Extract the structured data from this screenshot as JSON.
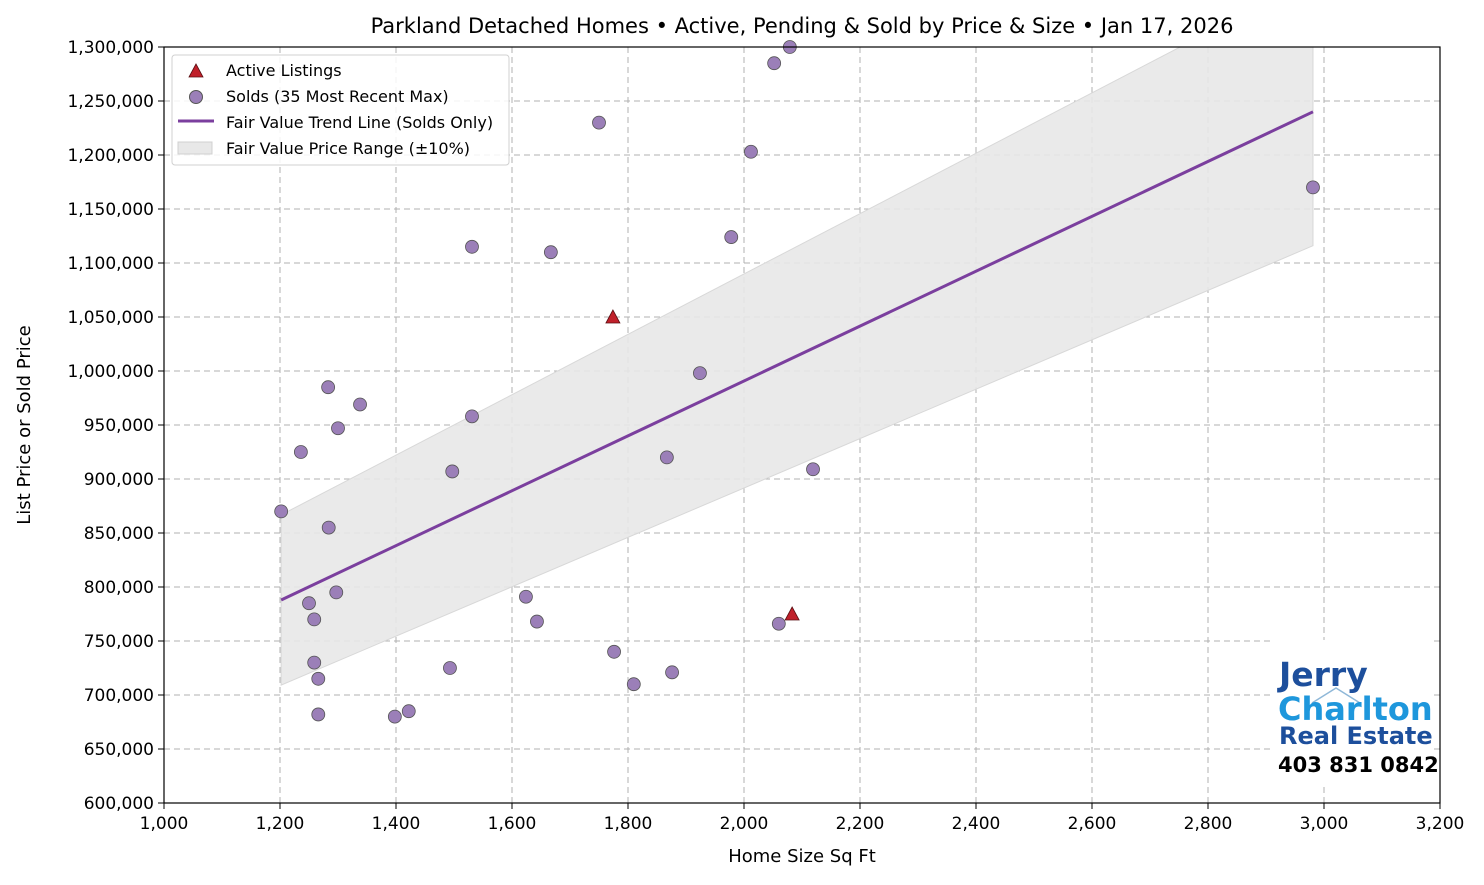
{
  "chart_data": {
    "type": "scatter",
    "title": "Parkland Detached Homes • Active, Pending & Sold by Price & Size • Jan 17, 2026",
    "xlabel": "Home Size Sq Ft",
    "ylabel": "List Price or Sold Price",
    "xlim": [
      1000,
      3200
    ],
    "ylim": [
      600000,
      1300000
    ],
    "grid": true,
    "legend_position": "top-left",
    "x_ticks": [
      1000,
      1200,
      1400,
      1600,
      1800,
      2000,
      2200,
      2400,
      2600,
      2800,
      3000,
      3200
    ],
    "x_tick_labels": [
      "1,000",
      "1,200",
      "1,400",
      "1,600",
      "1,800",
      "2,000",
      "2,200",
      "2,400",
      "2,600",
      "2,800",
      "3,000",
      "3,200"
    ],
    "y_ticks": [
      600000,
      650000,
      700000,
      750000,
      800000,
      850000,
      900000,
      950000,
      1000000,
      1050000,
      1100000,
      1150000,
      1200000,
      1250000,
      1300000
    ],
    "y_tick_labels": [
      "600,000",
      "650,000",
      "700,000",
      "750,000",
      "800,000",
      "850,000",
      "900,000",
      "950,000",
      "1,000,000",
      "1,050,000",
      "1,100,000",
      "1,150,000",
      "1,200,000",
      "1,250,000",
      "1,300,000"
    ],
    "series": [
      {
        "name": "Active Listings",
        "kind": "scatter",
        "marker": "triangle",
        "color": "#c0202a",
        "points": [
          [
            1774,
            1050000
          ],
          [
            2083,
            775000
          ]
        ]
      },
      {
        "name": "Solds (35 Most Recent Max)",
        "kind": "scatter",
        "marker": "circle",
        "color": "#9b7fb8",
        "points": [
          [
            2079,
            1300000
          ],
          [
            2052,
            1285000
          ],
          [
            1750,
            1230000
          ],
          [
            2012,
            1203000
          ],
          [
            2981,
            1170000
          ],
          [
            1978,
            1124000
          ],
          [
            1531,
            1115000
          ],
          [
            1667,
            1110000
          ],
          [
            1924,
            998000
          ],
          [
            1283,
            985000
          ],
          [
            1338,
            969000
          ],
          [
            1531,
            958000
          ],
          [
            1300,
            947000
          ],
          [
            1236,
            925000
          ],
          [
            1497,
            907000
          ],
          [
            1867,
            920000
          ],
          [
            2119,
            909000
          ],
          [
            1202,
            870000
          ],
          [
            1284,
            855000
          ],
          [
            1297,
            795000
          ],
          [
            1624,
            791000
          ],
          [
            1250,
            785000
          ],
          [
            1259,
            770000
          ],
          [
            1643,
            768000
          ],
          [
            2060,
            766000
          ],
          [
            1776,
            740000
          ],
          [
            1259,
            730000
          ],
          [
            1493,
            725000
          ],
          [
            1876,
            721000
          ],
          [
            1266,
            715000
          ],
          [
            1810,
            710000
          ],
          [
            1266,
            682000
          ],
          [
            1398,
            680000
          ],
          [
            1422,
            685000
          ]
        ]
      },
      {
        "name": "Fair Value Trend Line (Solds Only)",
        "kind": "line",
        "color": "#7b3f9e",
        "points": [
          [
            1202,
            788000
          ],
          [
            2981,
            1240000
          ]
        ]
      },
      {
        "name": "Fair Value Price Range (±10%)",
        "kind": "band",
        "color": "#e8e8e8",
        "band_pct": 10
      }
    ]
  },
  "logo": {
    "line1": "Jerry",
    "line2": "Charlton",
    "line3": "Real Estate",
    "phone": "403 831 0842"
  }
}
